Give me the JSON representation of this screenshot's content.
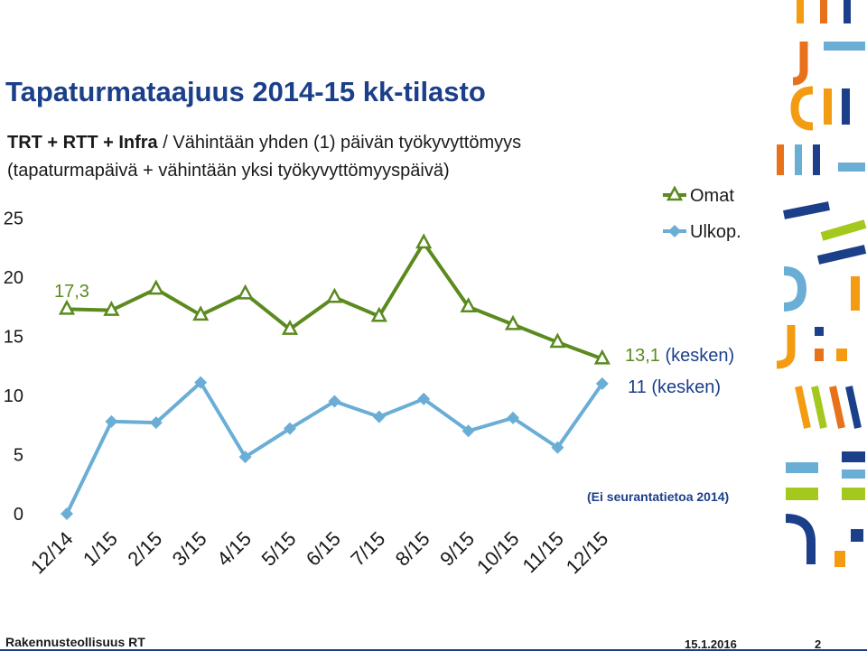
{
  "header": {
    "title": "Tapaturmataajuus 2014-15 kk-tilasto",
    "subtitle_bold": "TRT + RTT + Infra",
    "subtitle_rest": " / Vähintään yhden (1) päivän työkyvyttömyys",
    "subtitle_line2": "(tapaturmapäivä + vähintään yksi työkyvyttömyyspäivä)"
  },
  "chart_data": {
    "type": "line",
    "categories": [
      "12/14",
      "1/15",
      "2/15",
      "3/15",
      "4/15",
      "5/15",
      "6/15",
      "7/15",
      "8/15",
      "9/15",
      "10/15",
      "11/15",
      "12/15"
    ],
    "ylim": [
      0,
      25
    ],
    "yticks": [
      "0",
      "5",
      "10",
      "15",
      "20",
      "25"
    ],
    "grid": false,
    "legend_position": "top-right",
    "series": [
      {
        "name": "Omat",
        "marker": "triangle",
        "color": "#5b8a1e",
        "values": [
          17.3,
          17.2,
          19.0,
          16.8,
          18.6,
          15.6,
          18.3,
          16.7,
          22.9,
          17.5,
          16.0,
          14.5,
          13.1
        ]
      },
      {
        "name": "Ulkop.",
        "marker": "diamond",
        "color": "#6aaed6",
        "values": [
          0,
          7.8,
          7.7,
          11.1,
          4.8,
          7.2,
          9.5,
          8.2,
          9.7,
          7.0,
          8.1,
          5.6,
          11.0
        ]
      }
    ],
    "annotations": {
      "first_value": "17,3",
      "omat_last_value": "13,1",
      "omat_last_note": " (kesken)",
      "ulkop_last_value": "11",
      "ulkop_last_note": " (kesken)",
      "no_data_note": "(Ei seurantatietoa 2014)"
    }
  },
  "colors": {
    "title": "#1c3f8a",
    "omat": "#5b8a1e",
    "ulkop": "#6aaed6",
    "deco": [
      "#f39c12",
      "#e8711b",
      "#1c3f8a",
      "#6aaed6",
      "#a5c81f"
    ]
  },
  "footer": {
    "company": "Rakennusteollisuus RT",
    "date": "15.1.2016",
    "page": "2"
  }
}
